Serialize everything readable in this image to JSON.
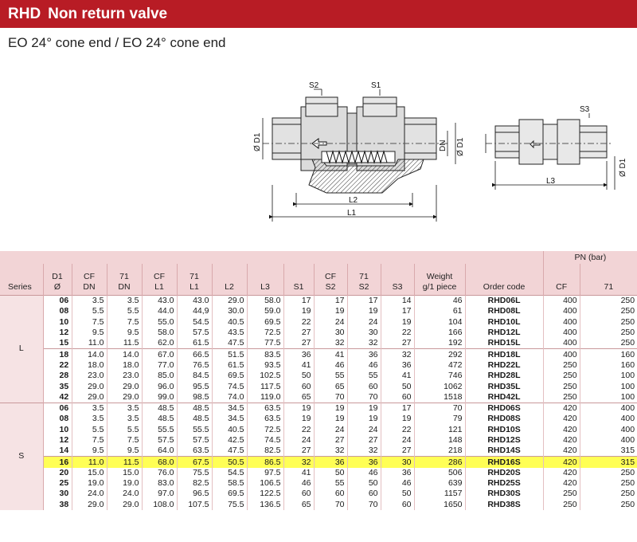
{
  "header": {
    "code": "RHD",
    "title": "Non return valve",
    "subtitle": "EO 24° cone end / EO 24° cone end"
  },
  "drawing": {
    "labels": {
      "s2": "S2",
      "s1": "S1",
      "s3": "S3",
      "d1_left": "Ø D1",
      "dn": "DN",
      "d1_mid": "Ø D1",
      "d1_right": "Ø D1",
      "l1": "L1",
      "l2": "L2",
      "l3": "L3"
    }
  },
  "table": {
    "pn_header": "PN (bar)",
    "headers": {
      "series": "Series",
      "d1": [
        "D1",
        "Ø"
      ],
      "cf_dn": [
        "CF",
        "DN"
      ],
      "m71_dn": [
        "71",
        "DN"
      ],
      "cf_l1": [
        "CF",
        "L1"
      ],
      "m71_l1": [
        "71",
        "L1"
      ],
      "l2": "L2",
      "l3": "L3",
      "s1": "S1",
      "cf_s2": [
        "CF",
        "S2"
      ],
      "m71_s2": [
        "71",
        "S2"
      ],
      "s3": "S3",
      "weight": [
        "Weight",
        "g/1 piece"
      ],
      "order": "Order code",
      "pn_cf": "CF",
      "pn_71": "71"
    },
    "series_labels": {
      "L": "L",
      "S": "S"
    },
    "rows_L": [
      [
        "06",
        "3.5",
        "3.5",
        "43.0",
        "43.0",
        "29.0",
        "58.0",
        "17",
        "17",
        "17",
        "14",
        "46",
        "RHD06L",
        "400",
        "250"
      ],
      [
        "08",
        "5.5",
        "5.5",
        "44.0",
        "44,9",
        "30.0",
        "59.0",
        "19",
        "19",
        "19",
        "17",
        "61",
        "RHD08L",
        "400",
        "250"
      ],
      [
        "10",
        "7.5",
        "7.5",
        "55.0",
        "54.5",
        "40.5",
        "69.5",
        "22",
        "24",
        "24",
        "19",
        "104",
        "RHD10L",
        "400",
        "250"
      ],
      [
        "12",
        "9.5",
        "9.5",
        "58.0",
        "57.5",
        "43.5",
        "72.5",
        "27",
        "30",
        "30",
        "22",
        "166",
        "RHD12L",
        "400",
        "250"
      ],
      [
        "15",
        "11.0",
        "11.5",
        "62.0",
        "61.5",
        "47.5",
        "77.5",
        "27",
        "32",
        "32",
        "27",
        "192",
        "RHD15L",
        "400",
        "250"
      ],
      [
        "18",
        "14.0",
        "14.0",
        "67.0",
        "66.5",
        "51.5",
        "83.5",
        "36",
        "41",
        "36",
        "32",
        "292",
        "RHD18L",
        "400",
        "160"
      ],
      [
        "22",
        "18.0",
        "18.0",
        "77.0",
        "76.5",
        "61.5",
        "93.5",
        "41",
        "46",
        "46",
        "36",
        "472",
        "RHD22L",
        "250",
        "160"
      ],
      [
        "28",
        "23.0",
        "23.0",
        "85.0",
        "84.5",
        "69.5",
        "102.5",
        "50",
        "55",
        "55",
        "41",
        "746",
        "RHD28L",
        "250",
        "100"
      ],
      [
        "35",
        "29.0",
        "29.0",
        "96.0",
        "95.5",
        "74.5",
        "117.5",
        "60",
        "65",
        "60",
        "50",
        "1062",
        "RHD35L",
        "250",
        "100"
      ],
      [
        "42",
        "29.0",
        "29.0",
        "99.0",
        "98.5",
        "74.0",
        "119.0",
        "65",
        "70",
        "70",
        "60",
        "1518",
        "RHD42L",
        "250",
        "100"
      ]
    ],
    "rows_S": [
      [
        "06",
        "3.5",
        "3.5",
        "48.5",
        "48.5",
        "34.5",
        "63.5",
        "19",
        "19",
        "19",
        "17",
        "70",
        "RHD06S",
        "420",
        "400"
      ],
      [
        "08",
        "3.5",
        "3.5",
        "48.5",
        "48.5",
        "34.5",
        "63.5",
        "19",
        "19",
        "19",
        "19",
        "79",
        "RHD08S",
        "420",
        "400"
      ],
      [
        "10",
        "5.5",
        "5.5",
        "55.5",
        "55.5",
        "40.5",
        "72.5",
        "22",
        "24",
        "24",
        "22",
        "121",
        "RHD10S",
        "420",
        "400"
      ],
      [
        "12",
        "7.5",
        "7.5",
        "57.5",
        "57.5",
        "42.5",
        "74.5",
        "24",
        "27",
        "27",
        "24",
        "148",
        "RHD12S",
        "420",
        "400"
      ],
      [
        "14",
        "9.5",
        "9.5",
        "64.0",
        "63.5",
        "47.5",
        "82.5",
        "27",
        "32",
        "32",
        "27",
        "218",
        "RHD14S",
        "420",
        "315"
      ],
      [
        "16",
        "11.0",
        "11.5",
        "68.0",
        "67.5",
        "50.5",
        "86.5",
        "32",
        "36",
        "36",
        "30",
        "286",
        "RHD16S",
        "420",
        "315"
      ],
      [
        "20",
        "15.0",
        "15.0",
        "76.0",
        "75.5",
        "54.5",
        "97.5",
        "41",
        "50",
        "46",
        "36",
        "506",
        "RHD20S",
        "420",
        "250"
      ],
      [
        "25",
        "19.0",
        "19.0",
        "83.0",
        "82.5",
        "58.5",
        "106.5",
        "46",
        "55",
        "50",
        "46",
        "639",
        "RHD25S",
        "420",
        "250"
      ],
      [
        "30",
        "24.0",
        "24.0",
        "97.0",
        "96.5",
        "69.5",
        "122.5",
        "60",
        "60",
        "60",
        "50",
        "1157",
        "RHD30S",
        "250",
        "250"
      ],
      [
        "38",
        "29.0",
        "29.0",
        "108.0",
        "107.5",
        "75.5",
        "136.5",
        "65",
        "70",
        "70",
        "60",
        "1650",
        "RHD38S",
        "250",
        "250"
      ]
    ]
  }
}
